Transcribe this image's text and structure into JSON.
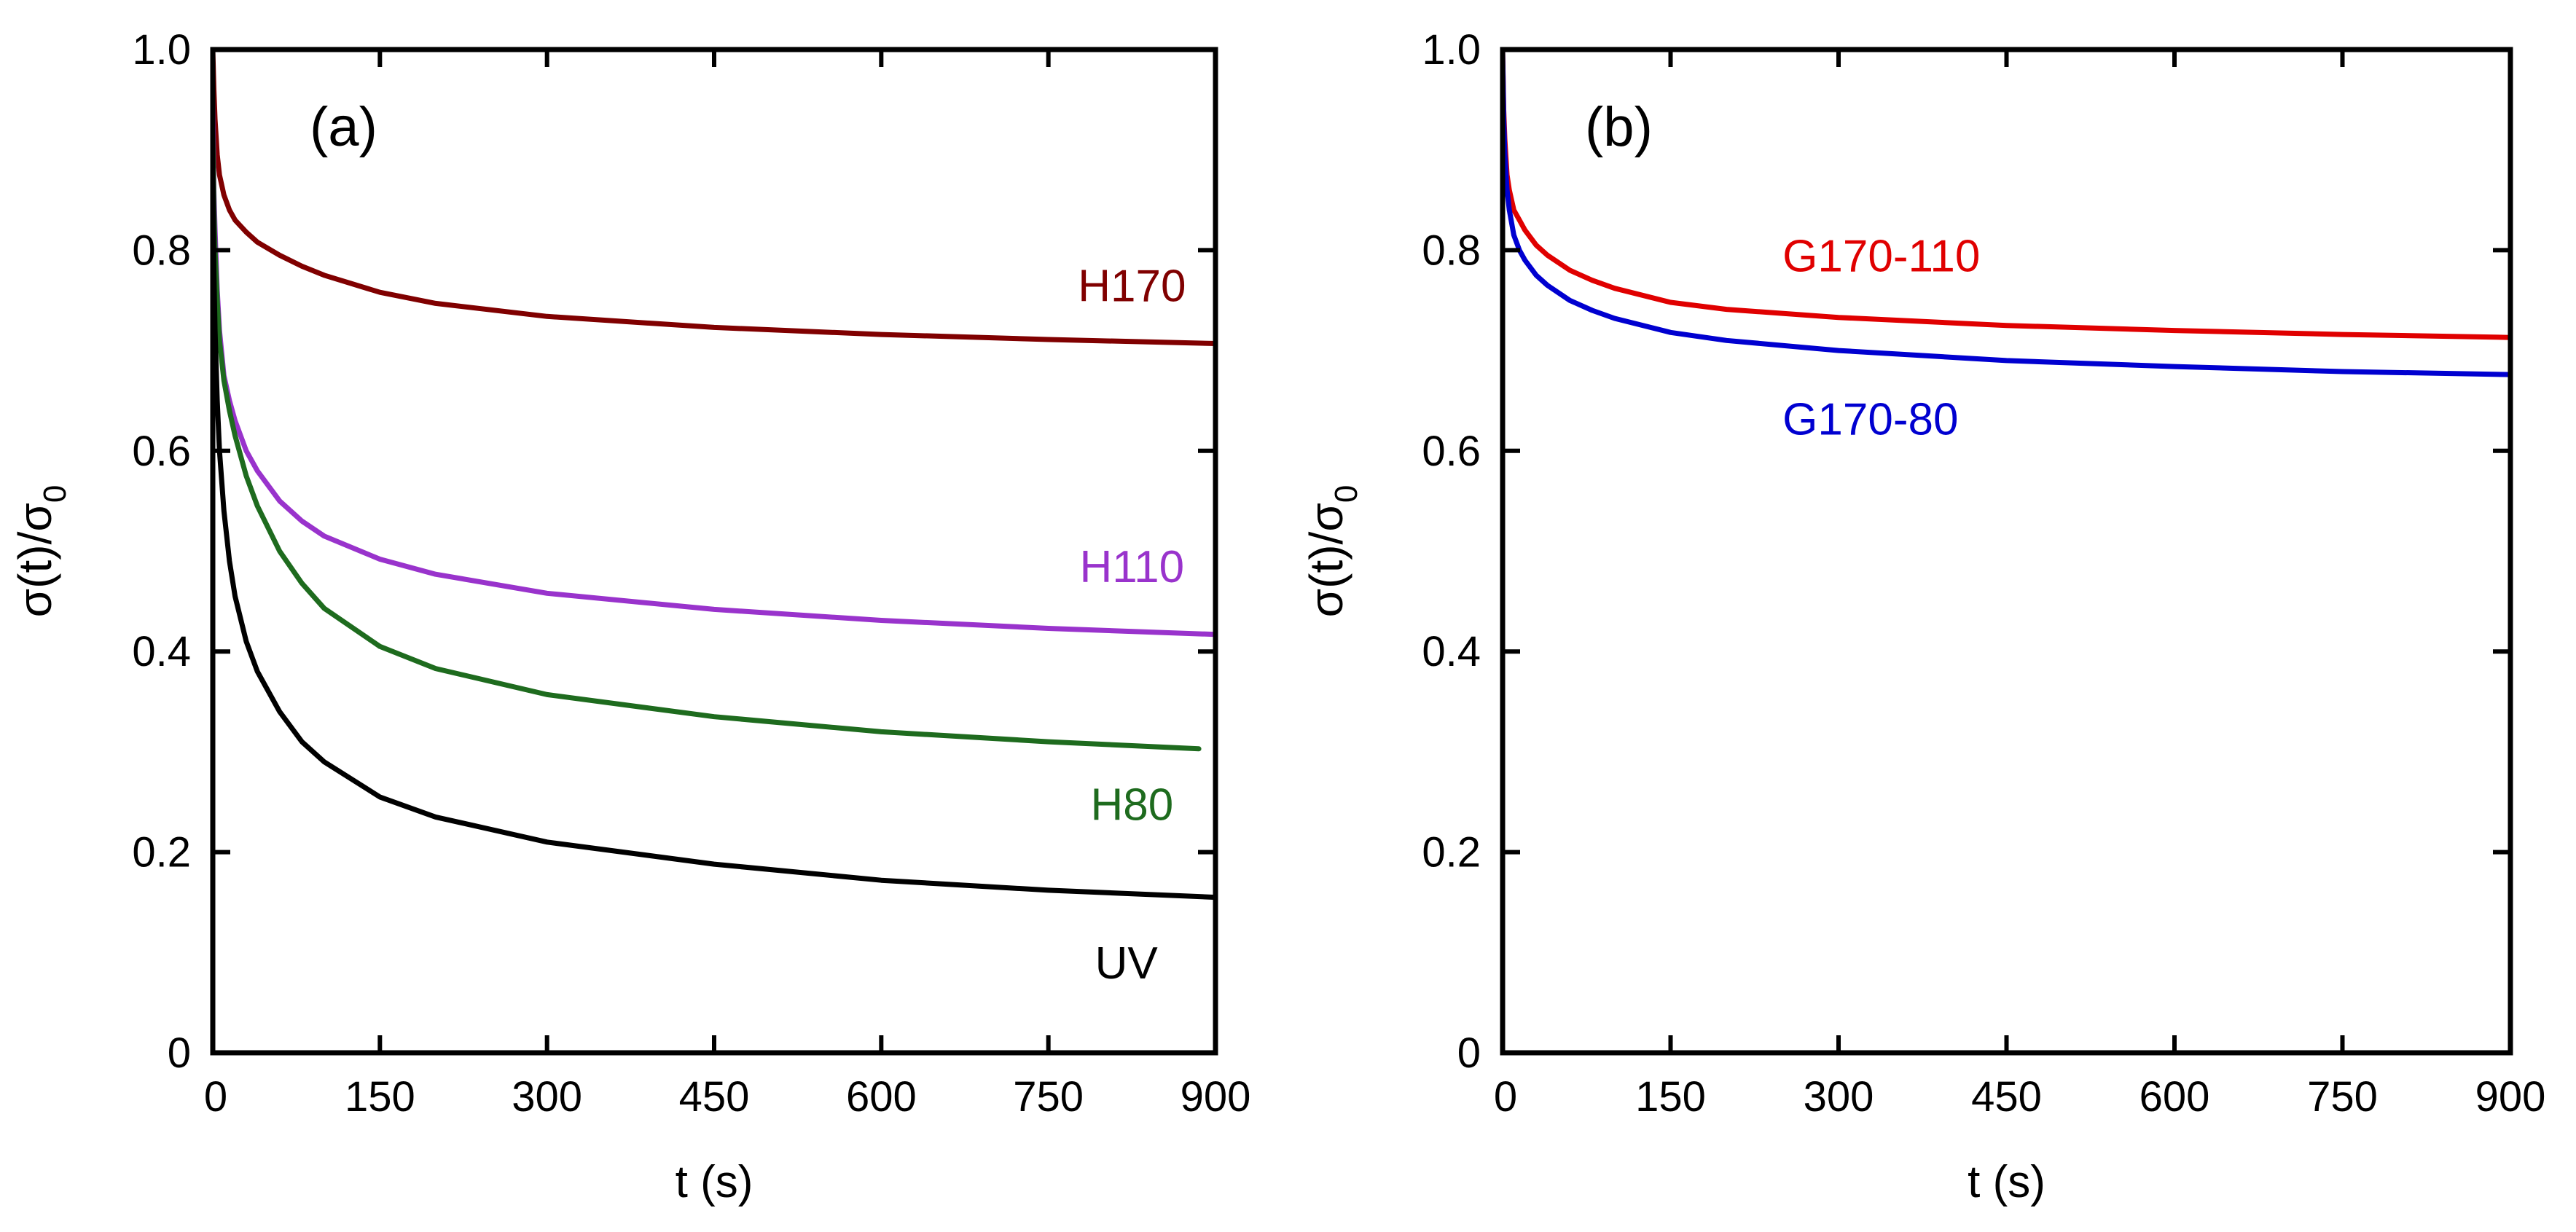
{
  "chart_data": [
    {
      "type": "line",
      "panel_label": "(a)",
      "xlabel": "t (s)",
      "ylabel": {
        "sigma": "σ(t)/σ",
        "sub": "0"
      },
      "xlim": [
        0,
        900
      ],
      "ylim": [
        0,
        1.0
      ],
      "xticks": [
        0,
        150,
        300,
        450,
        600,
        750,
        900
      ],
      "yticks": [
        {
          "value": 0,
          "label": "0"
        },
        {
          "value": 0.2,
          "label": "0.2"
        },
        {
          "value": 0.4,
          "label": "0.4"
        },
        {
          "value": 0.6,
          "label": "0.6"
        },
        {
          "value": 0.8,
          "label": "0.8"
        },
        {
          "value": 1.0,
          "label": "1.0"
        }
      ],
      "series": [
        {
          "name": "H170",
          "color": "#800000",
          "label_at": [
            825,
            0.765
          ],
          "x": [
            0,
            1,
            2,
            4,
            6,
            10,
            15,
            20,
            30,
            40,
            60,
            80,
            100,
            150,
            200,
            300,
            450,
            600,
            750,
            900
          ],
          "y": [
            1.0,
            0.96,
            0.93,
            0.895,
            0.875,
            0.855,
            0.84,
            0.83,
            0.818,
            0.808,
            0.795,
            0.784,
            0.775,
            0.758,
            0.747,
            0.734,
            0.723,
            0.716,
            0.711,
            0.707
          ]
        },
        {
          "name": "H110",
          "color": "#9933cc",
          "label_at": [
            825,
            0.485
          ],
          "x": [
            0,
            1,
            2,
            4,
            6,
            10,
            15,
            20,
            30,
            40,
            60,
            80,
            100,
            150,
            200,
            300,
            450,
            600,
            750,
            900
          ],
          "y": [
            0.95,
            0.86,
            0.82,
            0.76,
            0.72,
            0.675,
            0.65,
            0.63,
            0.6,
            0.58,
            0.55,
            0.53,
            0.515,
            0.492,
            0.477,
            0.458,
            0.442,
            0.431,
            0.423,
            0.417
          ]
        },
        {
          "name": "H80",
          "color": "#1e6b1e",
          "label_at": [
            825,
            0.248
          ],
          "x": [
            0,
            1,
            2,
            4,
            6,
            10,
            15,
            20,
            30,
            40,
            60,
            80,
            100,
            150,
            200,
            300,
            450,
            600,
            750,
            885
          ],
          "y": [
            0.92,
            0.84,
            0.8,
            0.75,
            0.71,
            0.67,
            0.64,
            0.615,
            0.575,
            0.545,
            0.5,
            0.468,
            0.443,
            0.405,
            0.383,
            0.357,
            0.335,
            0.32,
            0.31,
            0.303
          ]
        },
        {
          "name": "UV",
          "color": "#000000",
          "label_at": [
            820,
            0.09
          ],
          "x": [
            0,
            1,
            2,
            4,
            6,
            10,
            15,
            20,
            30,
            40,
            60,
            80,
            100,
            150,
            200,
            300,
            450,
            600,
            750,
            900
          ],
          "y": [
            0.88,
            0.78,
            0.72,
            0.65,
            0.6,
            0.54,
            0.49,
            0.455,
            0.41,
            0.38,
            0.34,
            0.31,
            0.29,
            0.255,
            0.235,
            0.21,
            0.188,
            0.172,
            0.162,
            0.155
          ]
        }
      ]
    },
    {
      "type": "line",
      "panel_label": "(b)",
      "xlabel": "t (s)",
      "ylabel": {
        "sigma": "σ(t)/σ",
        "sub": "0"
      },
      "xlim": [
        0,
        900
      ],
      "ylim": [
        0,
        1.0
      ],
      "xticks": [
        0,
        150,
        300,
        450,
        600,
        750,
        900
      ],
      "yticks": [
        {
          "value": 0,
          "label": "0"
        },
        {
          "value": 0.2,
          "label": "0.2"
        },
        {
          "value": 0.4,
          "label": "0.4"
        },
        {
          "value": 0.6,
          "label": "0.6"
        },
        {
          "value": 0.8,
          "label": "0.8"
        },
        {
          "value": 1.0,
          "label": "1.0"
        }
      ],
      "series": [
        {
          "name": "G170-110",
          "color": "#e00000",
          "label_at": [
            250,
            0.795
          ],
          "x": [
            0,
            1,
            2,
            4,
            6,
            10,
            15,
            20,
            30,
            40,
            60,
            80,
            100,
            150,
            200,
            300,
            450,
            600,
            750,
            900
          ],
          "y": [
            1.0,
            0.94,
            0.91,
            0.875,
            0.86,
            0.84,
            0.83,
            0.82,
            0.805,
            0.795,
            0.78,
            0.77,
            0.762,
            0.748,
            0.741,
            0.733,
            0.725,
            0.72,
            0.716,
            0.713
          ]
        },
        {
          "name": "G170-80",
          "color": "#0000d0",
          "label_at": [
            250,
            0.632
          ],
          "x": [
            0,
            1,
            2,
            4,
            6,
            10,
            15,
            20,
            30,
            40,
            60,
            80,
            100,
            150,
            200,
            300,
            450,
            600,
            750,
            900
          ],
          "y": [
            1.0,
            0.93,
            0.895,
            0.86,
            0.84,
            0.815,
            0.8,
            0.79,
            0.775,
            0.765,
            0.75,
            0.74,
            0.732,
            0.718,
            0.71,
            0.7,
            0.69,
            0.684,
            0.679,
            0.676
          ]
        }
      ]
    }
  ]
}
